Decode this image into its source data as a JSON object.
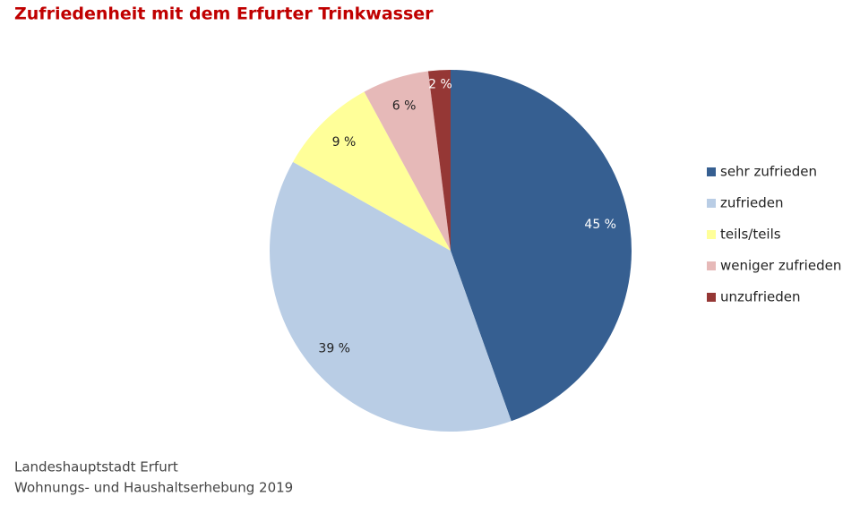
{
  "chart_data": {
    "type": "pie",
    "title": "Zufriedenheit mit dem Erfurter Trinkwasser",
    "categories": [
      "sehr zufrieden",
      "zufrieden",
      "teils/teils",
      "weniger zufrieden",
      "unzufrieden"
    ],
    "values": [
      45,
      39,
      9,
      6,
      2
    ],
    "value_labels": [
      "45 %",
      "39 %",
      "9 %",
      "6 %",
      "2 %"
    ],
    "colors": [
      "#365f91",
      "#b9cde5",
      "#ffff99",
      "#e6b9b8",
      "#953735"
    ],
    "label_colors": [
      "#ffffff",
      "#222222",
      "#222222",
      "#222222",
      "#ffffff"
    ],
    "legend": "right",
    "source": [
      "Landeshauptstadt Erfurt",
      "Wohnungs- und Haushaltserhebung 2019"
    ]
  }
}
